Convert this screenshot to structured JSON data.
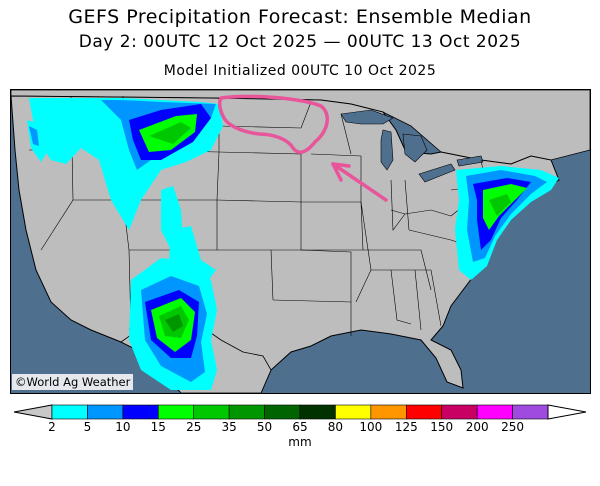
{
  "title": "GEFS Precipitation Forecast: Ensemble Median",
  "valid_period": "Day 2: 00UTC 12 Oct 2025 — 00UTC 13 Oct 2025",
  "init": "Model Initialized 00UTC 10 Oct 2025",
  "credit": "©World Ag Weather",
  "colorbar": {
    "units": "mm",
    "ticks": [
      "2",
      "5",
      "10",
      "15",
      "25",
      "35",
      "50",
      "65",
      "80",
      "100",
      "125",
      "150",
      "200",
      "250"
    ],
    "colors": [
      "#00ffff",
      "#0096ff",
      "#0000ff",
      "#00ff00",
      "#00c800",
      "#009600",
      "#006400",
      "#003200",
      "#ffff00",
      "#ff9600",
      "#ff0000",
      "#c80064",
      "#ff00ff",
      "#a04be0"
    ],
    "under_color": "#c8c8c8",
    "over_color": "#ffffff"
  },
  "map": {
    "land_color": "#bdbdbd",
    "water_color": "#4f6f8f",
    "annotation_color": "#e8559a"
  }
}
